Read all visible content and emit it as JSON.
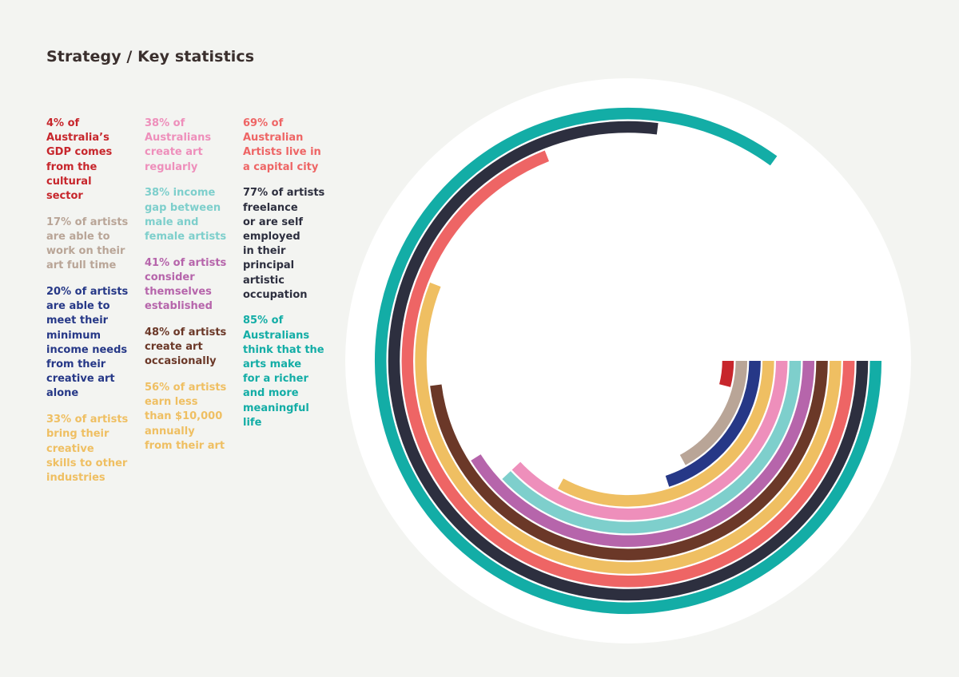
{
  "page": {
    "title": "Strategy / Key statistics"
  },
  "stats_columns": [
    [
      {
        "text": "4% of Australia’s GDP comes from the cultural sector",
        "lines": [
          "4% of",
          "Australia’s",
          "GDP comes",
          "from the",
          "cultural",
          "sector"
        ],
        "color": "#c7262c"
      },
      {
        "text": "17% of artists are able to work on their art full time",
        "lines": [
          "17% of artists",
          "are able to",
          "work on their",
          "art full time"
        ],
        "color": "#b9a597"
      },
      {
        "text": "20% of artists are able to meet their minimum income needs from their creative art alone",
        "lines": [
          "20% of artists",
          "are able to",
          "meet their",
          "minimum",
          "income needs",
          "from their",
          "creative art",
          "alone"
        ],
        "color": "#263887"
      },
      {
        "text": "33% of artists bring their creative skills to other industries",
        "lines": [
          "33% of artists",
          "bring their",
          "creative",
          "skills to other",
          "industries"
        ],
        "color": "#efbf62"
      }
    ],
    [
      {
        "text": "38% of Australians create art regularly",
        "lines": [
          "38% of",
          "Australians",
          "create art",
          "regularly"
        ],
        "color": "#ee8fbb"
      },
      {
        "text": "38% income gap between male and female artists",
        "lines": [
          "38% income",
          "gap between",
          "male and",
          "female artists"
        ],
        "color": "#7ecfcc"
      },
      {
        "text": "41% of artists consider themselves established",
        "lines": [
          "41% of artists",
          "consider",
          "themselves",
          "established"
        ],
        "color": "#b665ab"
      },
      {
        "text": "48% of artists create art occasionally",
        "lines": [
          "48% of artists",
          "create art",
          "occasionally"
        ],
        "color": "#6b3828"
      },
      {
        "text": "56% of artists earn less than $10,000 annually from their art",
        "lines": [
          "56% of artists",
          "earn less",
          "than $10,000",
          "annually",
          "from their art"
        ],
        "color": "#efbf62"
      }
    ],
    [
      {
        "text": "69% of Australian Artists live in a capital city",
        "lines": [
          "69% of",
          "Australian",
          "Artists live in",
          "a capital city"
        ],
        "color": "#ee6565"
      },
      {
        "text": "77% of artists freelance or are self employed in their principal artistic occupation",
        "lines": [
          "77% of artists",
          "freelance",
          "or are self",
          "employed",
          "in their",
          "principal",
          "artistic",
          "occupation"
        ],
        "color": "#2d2f3f"
      },
      {
        "text": "85% of Australians think that the arts make for a richer and more meaningful life",
        "lines": [
          "85% of",
          "Australians",
          "think that the",
          "arts make",
          "for a richer",
          "and more",
          "meaningful",
          "life"
        ],
        "color": "#13ada6"
      }
    ]
  ],
  "chart_data": {
    "type": "radial-bar",
    "title": "",
    "unit": "percent",
    "series": [
      {
        "name": "4% of Australia’s GDP comes from the cultural sector",
        "value": 4,
        "color": "#c7262c"
      },
      {
        "name": "17% of artists are able to work on their art full time",
        "value": 17,
        "color": "#b9a597"
      },
      {
        "name": "20% of artists are able to meet their minimum income needs from their creative art alone",
        "value": 20,
        "color": "#263887"
      },
      {
        "name": "33% of artists bring their creative skills to other industries",
        "value": 33,
        "color": "#efbf62"
      },
      {
        "name": "38% of Australians create art regularly",
        "value": 38,
        "color": "#ee8fbb"
      },
      {
        "name": "38% income gap between male and female artists",
        "value": 38,
        "color": "#7ecfcc"
      },
      {
        "name": "41% of artists consider themselves established",
        "value": 41,
        "color": "#b665ab"
      },
      {
        "name": "48% of artists create art occasionally",
        "value": 48,
        "color": "#6b3828"
      },
      {
        "name": "56% of artists earn less than $10,000 annually from their art",
        "value": 56,
        "color": "#efbf62"
      },
      {
        "name": "69% of Australian Artists live in a capital city",
        "value": 69,
        "color": "#ee6565"
      },
      {
        "name": "77% of artists freelance or are self employed in their principal artistic occupation",
        "value": 77,
        "color": "#2d2f3f"
      },
      {
        "name": "85% of Australians think that the arts make for a richer and more meaningful life",
        "value": 85,
        "color": "#13ada6"
      }
    ]
  }
}
